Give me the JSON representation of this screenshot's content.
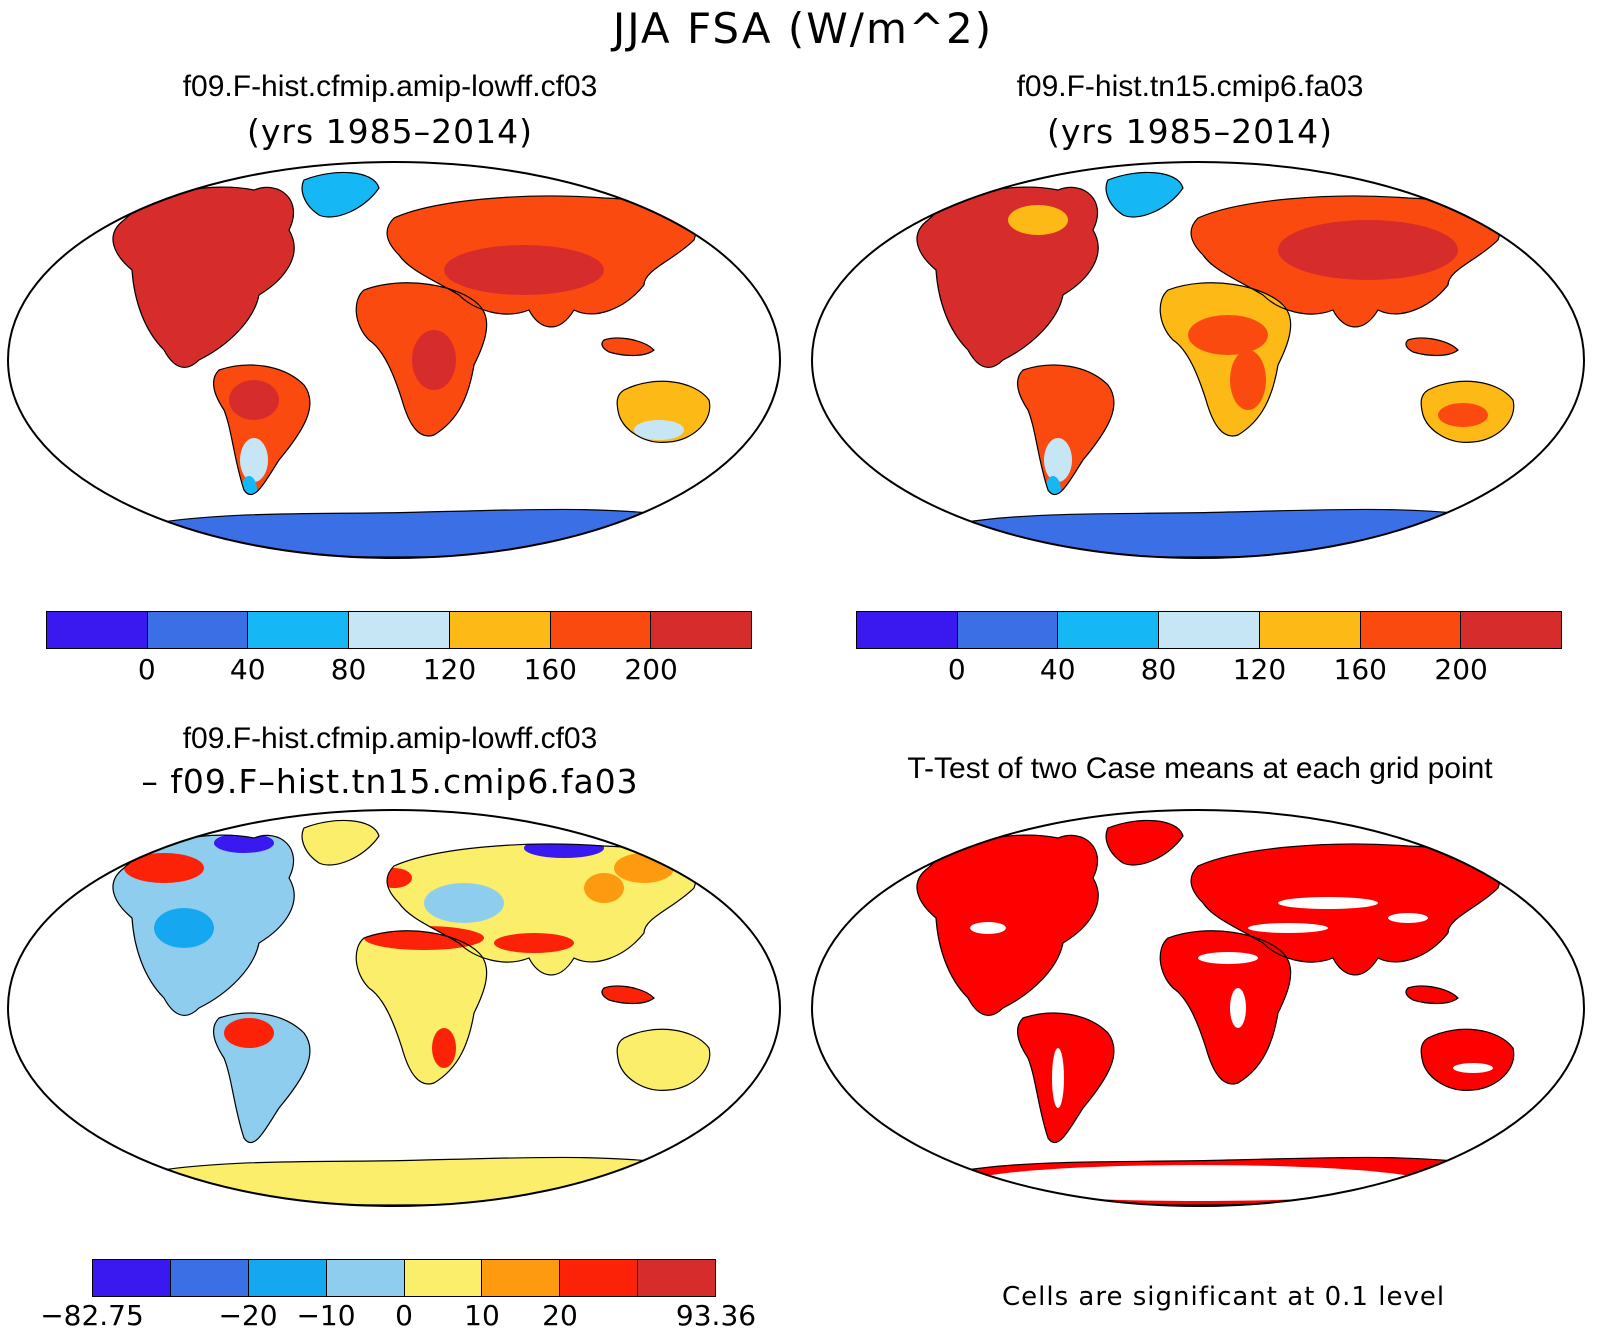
{
  "figure_title": "JJA FSA (W/m^2)",
  "panels": {
    "tl": {
      "title": "f09.F-hist.cfmip.amip-lowff.cf03",
      "subtitle": "(yrs 1985–2014)"
    },
    "tr": {
      "title": "f09.F-hist.tn15.cmip6.fa03",
      "subtitle": "(yrs 1985–2014)"
    },
    "bl": {
      "title": "f09.F-hist.cfmip.amip-lowff.cf03",
      "subtitle": "– f09.F–hist.tn15.cmip6.fa03"
    },
    "br": {
      "title": "T-Test of two Case means at each grid point",
      "note": "Cells are significant at 0.1 level"
    }
  },
  "colorbars": {
    "abs": {
      "colors": [
        "#3a18f0",
        "#3b6fe6",
        "#15b7f5",
        "#c7e6f5",
        "#fdb915",
        "#fb4a10",
        "#d62c2c"
      ],
      "labels": [
        "0",
        "40",
        "80",
        "120",
        "160",
        "200"
      ]
    },
    "diff": {
      "colors": [
        "#3a18f0",
        "#3b6fe6",
        "#15a8f0",
        "#8fcdee",
        "#fbee6a",
        "#fd9a10",
        "#fb2208",
        "#d62c2c"
      ],
      "labels": [
        "−82.75",
        "−20",
        "−10",
        "0",
        "10",
        "20",
        "93.36"
      ]
    }
  },
  "colors": {
    "significant": "#ff0000",
    "ocean": "#ffffff",
    "coast": "#000000"
  }
}
